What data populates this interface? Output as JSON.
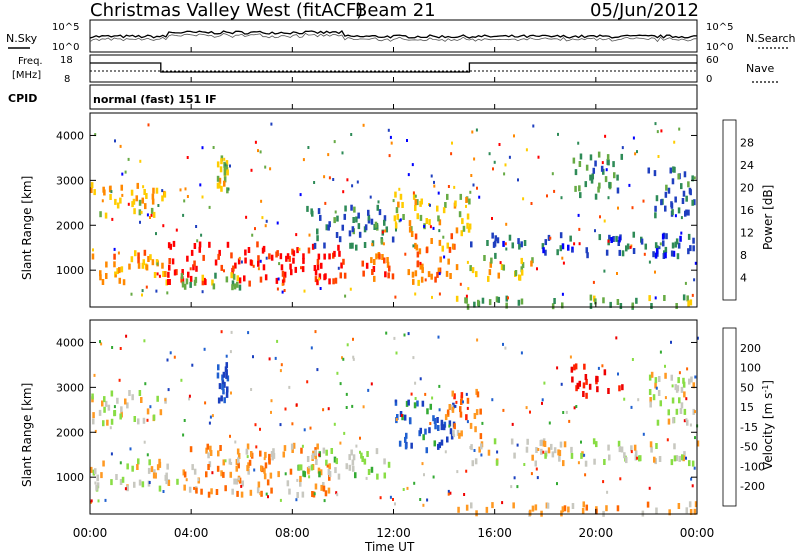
{
  "header": {
    "title": "Christmas Valley West (fitACF)",
    "beam": "Beam 21",
    "date": "05/Jun/2012"
  },
  "noise_panel": {
    "left_label": "N.Sky",
    "right_label": "N.Search",
    "left_ticks": [
      "10^5",
      "10^0"
    ],
    "right_ticks": [
      "10^5",
      "10^0"
    ]
  },
  "freq_panel": {
    "left_label_1": "Freq.",
    "left_label_2": "[MHz]",
    "left_ticks": [
      "18",
      "8"
    ],
    "right_label": "Nave",
    "right_ticks": [
      "60",
      "0"
    ]
  },
  "cpid": {
    "label": "CPID",
    "value": "normal (fast) 151 IF"
  },
  "power_panel": {
    "ylabel": "Slant Range [km]",
    "yticks": [
      "4000",
      "3000",
      "2000",
      "1000"
    ],
    "colorbar_label": "Power [dB]",
    "colorbar_ticks": [
      "28",
      "24",
      "20",
      "16",
      "12",
      "8",
      "4"
    ],
    "colors": [
      "#0000ff",
      "#1f3fbf",
      "#2e8b57",
      "#66aa44",
      "#ffcc00",
      "#ff8800",
      "#ff4400",
      "#ff0000"
    ]
  },
  "velocity_panel": {
    "ylabel": "Slant Range [km]",
    "yticks": [
      "4000",
      "3000",
      "2000",
      "1000"
    ],
    "colorbar_label": "Velocity [m s^-1]",
    "colorbar_ticks": [
      "200",
      "100",
      "50",
      "15",
      "-15",
      "-50",
      "-100",
      "-200"
    ],
    "colors": [
      "#1a3fbf",
      "#2060d0",
      "#33aa33",
      "#88dd44",
      "#c8c8c0",
      "#ff9922",
      "#ff6600",
      "#ff2200",
      "#ee0000"
    ]
  },
  "x_axis": {
    "label": "Time UT",
    "ticks": [
      "00:00",
      "04:00",
      "08:00",
      "12:00",
      "16:00",
      "20:00",
      "00:00"
    ]
  },
  "chart_data": [
    {
      "type": "heatmap",
      "title": "",
      "xlabel": "Time UT",
      "ylabel": "Slant Range [km]",
      "xlim": [
        0,
        24
      ],
      "ylim": [
        180,
        4500
      ],
      "color_scale": "Power [dB]",
      "color_range": [
        0,
        30
      ],
      "regions": [
        {
          "t0": 0.0,
          "t1": 3.0,
          "r0": 2200,
          "r1": 2900,
          "value": 18
        },
        {
          "t0": 0.0,
          "t1": 3.0,
          "r0": 700,
          "r1": 1400,
          "value": 20
        },
        {
          "t0": 3.0,
          "t1": 10.0,
          "r0": 700,
          "r1": 1600,
          "value": 28
        },
        {
          "t0": 3.5,
          "t1": 6.0,
          "r0": 600,
          "r1": 900,
          "value": 14
        },
        {
          "t0": 5.0,
          "t1": 5.4,
          "r0": 2700,
          "r1": 3500,
          "value": 16
        },
        {
          "t0": 8.5,
          "t1": 12.0,
          "r0": 1500,
          "r1": 2400,
          "value": 8
        },
        {
          "t0": 10.0,
          "t1": 12.0,
          "r0": 800,
          "r1": 1400,
          "value": 24
        },
        {
          "t0": 12.0,
          "t1": 15.0,
          "r0": 1800,
          "r1": 2700,
          "value": 16
        },
        {
          "t0": 12.5,
          "t1": 14.5,
          "r0": 700,
          "r1": 1800,
          "value": 22
        },
        {
          "t0": 15.0,
          "t1": 17.5,
          "r0": 800,
          "r1": 1300,
          "value": 16
        },
        {
          "t0": 15.0,
          "t1": 24.0,
          "r0": 1300,
          "r1": 1800,
          "value": 6
        },
        {
          "t0": 19.0,
          "t1": 21.0,
          "r0": 2600,
          "r1": 3600,
          "value": 10
        },
        {
          "t0": 22.0,
          "t1": 24.0,
          "r0": 2200,
          "r1": 3300,
          "value": 8
        },
        {
          "t0": 14.0,
          "t1": 24.0,
          "r0": 180,
          "r1": 400,
          "value": 12
        }
      ]
    },
    {
      "type": "heatmap",
      "title": "",
      "xlabel": "Time UT",
      "ylabel": "Slant Range [km]",
      "xlim": [
        0,
        24
      ],
      "ylim": [
        180,
        4500
      ],
      "color_scale": "Velocity [m s^-1]",
      "color_range": [
        -250,
        250
      ],
      "regions": [
        {
          "t0": 0.0,
          "t1": 3.0,
          "r0": 2200,
          "r1": 2900,
          "value": 0
        },
        {
          "t0": 0.0,
          "t1": 3.5,
          "r0": 700,
          "r1": 1400,
          "value": 0
        },
        {
          "t0": 3.5,
          "t1": 9.5,
          "r0": 600,
          "r1": 1700,
          "value": -60
        },
        {
          "t0": 5.0,
          "t1": 5.4,
          "r0": 2700,
          "r1": 3500,
          "value": 200
        },
        {
          "t0": 8.0,
          "t1": 12.0,
          "r0": 1000,
          "r1": 1600,
          "value": 40
        },
        {
          "t0": 12.0,
          "t1": 14.5,
          "r0": 1600,
          "r1": 2700,
          "value": 180
        },
        {
          "t0": 14.0,
          "t1": 15.5,
          "r0": 1800,
          "r1": 2900,
          "value": -80
        },
        {
          "t0": 15.0,
          "t1": 24.0,
          "r0": 1300,
          "r1": 1800,
          "value": 0
        },
        {
          "t0": 19.0,
          "t1": 21.0,
          "r0": 2800,
          "r1": 3500,
          "value": -200
        },
        {
          "t0": 22.0,
          "t1": 24.0,
          "r0": 2200,
          "r1": 3300,
          "value": 0
        },
        {
          "t0": 14.0,
          "t1": 24.0,
          "r0": 180,
          "r1": 400,
          "value": -50
        }
      ]
    }
  ]
}
